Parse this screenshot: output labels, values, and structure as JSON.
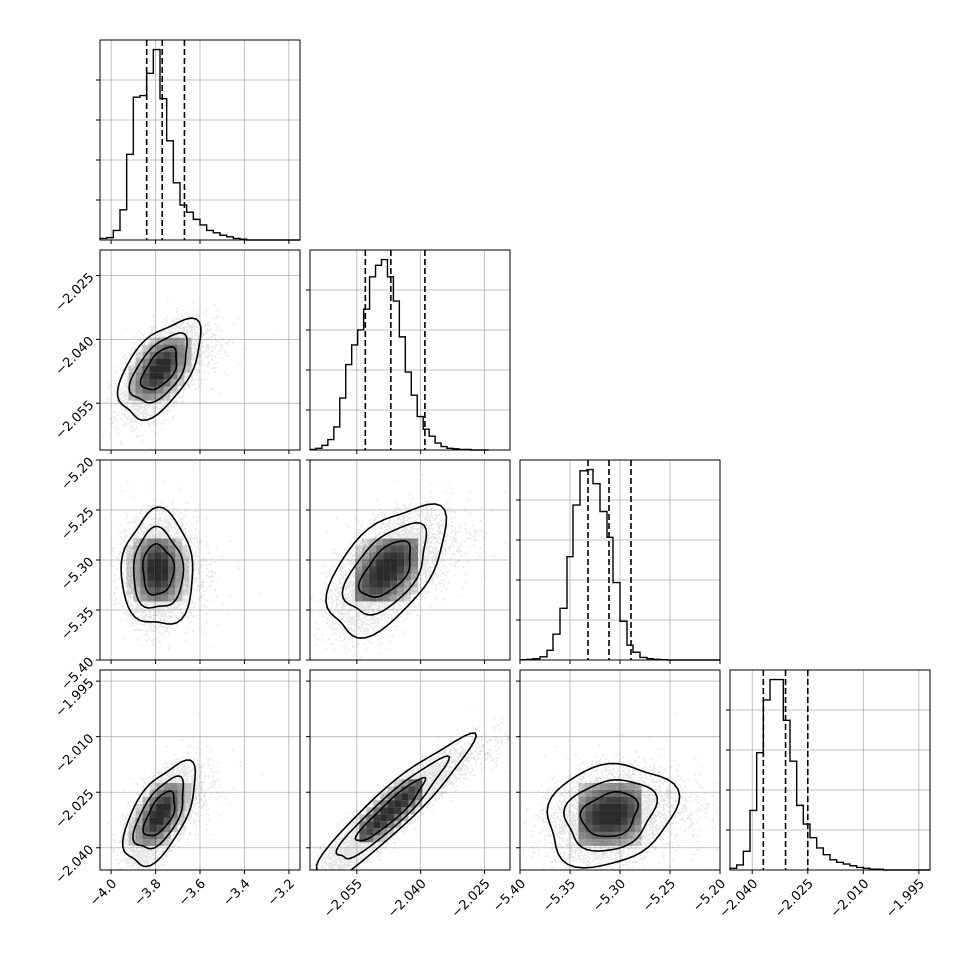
{
  "chart_data": {
    "type": "corner",
    "n_params": 4,
    "params": [
      {
        "index": 0,
        "range": [
          -4.05,
          -3.15
        ],
        "ticks": [
          -4.0,
          -3.8,
          -3.6,
          -3.4,
          -3.2
        ],
        "tick_labels": [
          "−4.0",
          "−3.8",
          "−3.6",
          "−3.4",
          "−3.2"
        ],
        "quantiles": [
          -3.84,
          -3.77,
          -3.67
        ]
      },
      {
        "index": 1,
        "range": [
          -2.066,
          -2.019
        ],
        "ticks": [
          -2.055,
          -2.04,
          -2.025
        ],
        "tick_labels": [
          "−2.055",
          "−2.040",
          "−2.025"
        ],
        "quantiles": [
          -2.053,
          -2.047,
          -2.039
        ]
      },
      {
        "index": 2,
        "range": [
          -5.4,
          -5.2
        ],
        "ticks": [
          -5.4,
          -5.35,
          -5.3,
          -5.25,
          -5.2
        ],
        "tick_labels": [
          "−5.40",
          "−5.35",
          "−5.30",
          "−5.25",
          "−5.20"
        ],
        "quantiles": [
          -5.332,
          -5.311,
          -5.289
        ]
      },
      {
        "index": 3,
        "range": [
          -2.046,
          -1.992
        ],
        "ticks": [
          -2.04,
          -2.025,
          -2.01,
          -1.995
        ],
        "tick_labels": [
          "−2.040",
          "−2.025",
          "−2.010",
          "−1.995"
        ],
        "quantiles": [
          -2.037,
          -2.031,
          -2.025
        ]
      }
    ],
    "histograms": [
      {
        "param": 0,
        "bins": [
          -4.05,
          -4.02,
          -3.99,
          -3.96,
          -3.93,
          -3.9,
          -3.87,
          -3.84,
          -3.81,
          -3.78,
          -3.75,
          -3.72,
          -3.69,
          -3.66,
          -3.63,
          -3.6,
          -3.57,
          -3.54,
          -3.51,
          -3.48,
          -3.45,
          -3.42,
          -3.39,
          -3.36,
          -3.33,
          -3.3,
          -3.27,
          -3.24,
          -3.21,
          -3.18,
          -3.15
        ],
        "counts": [
          2,
          3,
          12,
          38,
          108,
          180,
          182,
          210,
          240,
          178,
          125,
          72,
          44,
          35,
          26,
          19,
          12,
          9,
          6,
          4,
          2,
          1,
          0,
          0,
          0,
          0,
          0,
          0,
          0,
          0
        ]
      },
      {
        "param": 1,
        "bins": [
          -2.066,
          -2.0646,
          -2.0632,
          -2.0618,
          -2.0604,
          -2.059,
          -2.0576,
          -2.0562,
          -2.0548,
          -2.0534,
          -2.052,
          -2.0506,
          -2.0492,
          -2.0478,
          -2.0464,
          -2.045,
          -2.0436,
          -2.0422,
          -2.0408,
          -2.0394,
          -2.038,
          -2.0366,
          -2.0352,
          -2.0338,
          -2.0324,
          -2.031,
          -2.0296,
          -2.0282,
          -2.0268,
          -2.0254,
          -2.024
        ],
        "counts": [
          1,
          3,
          8,
          18,
          40,
          90,
          148,
          182,
          208,
          244,
          300,
          320,
          330,
          300,
          258,
          196,
          135,
          95,
          58,
          36,
          24,
          12,
          6,
          3,
          2,
          1,
          1,
          0,
          0,
          0
        ]
      },
      {
        "param": 2,
        "bins": [
          -5.4,
          -5.393,
          -5.387,
          -5.38,
          -5.373,
          -5.367,
          -5.36,
          -5.353,
          -5.347,
          -5.34,
          -5.333,
          -5.327,
          -5.32,
          -5.313,
          -5.307,
          -5.3,
          -5.293,
          -5.287,
          -5.28,
          -5.273,
          -5.267,
          -5.26,
          -5.253,
          -5.247,
          -5.24,
          -5.233,
          -5.227,
          -5.22,
          -5.213,
          -5.207,
          -5.2
        ],
        "counts": [
          1,
          2,
          4,
          10,
          30,
          80,
          160,
          320,
          480,
          586,
          590,
          546,
          460,
          380,
          240,
          120,
          46,
          24,
          8,
          4,
          2,
          1,
          0,
          0,
          0,
          0,
          0,
          0,
          0,
          0
        ]
      },
      {
        "param": 3,
        "bins": [
          -2.046,
          -2.0442,
          -2.0424,
          -2.0406,
          -2.0388,
          -2.037,
          -2.0352,
          -2.0334,
          -2.0316,
          -2.0298,
          -2.028,
          -2.0262,
          -2.0244,
          -2.0226,
          -2.0208,
          -2.019,
          -2.0172,
          -2.0154,
          -2.0136,
          -2.0118,
          -2.01,
          -2.0082,
          -2.0064,
          -2.0046,
          -2.0028,
          -2.001,
          -1.9992,
          -1.9974,
          -1.9956,
          -1.9938,
          -1.992
        ],
        "counts": [
          2,
          6,
          22,
          70,
          138,
          200,
          224,
          224,
          176,
          128,
          76,
          54,
          38,
          26,
          18,
          12,
          9,
          7,
          5,
          3,
          2,
          1,
          1,
          0,
          0,
          0,
          0,
          0,
          0,
          0
        ]
      }
    ],
    "joint": [
      {
        "x_param": 0,
        "y_param": 1,
        "mean": [
          -3.78,
          -2.047
        ],
        "std": [
          0.08,
          0.005
        ],
        "corr": 0.55,
        "n_points": 4500,
        "contour_levels": 3
      },
      {
        "x_param": 0,
        "y_param": 2,
        "mean": [
          -3.79,
          -5.31
        ],
        "std": [
          0.07,
          0.025
        ],
        "corr": 0.0,
        "n_points": 4500,
        "contour_levels": 3
      },
      {
        "x_param": 1,
        "y_param": 2,
        "mean": [
          -2.048,
          -5.31
        ],
        "std": [
          0.006,
          0.028
        ],
        "corr": 0.55,
        "n_points": 4500,
        "contour_levels": 3
      },
      {
        "x_param": 0,
        "y_param": 3,
        "mean": [
          -3.78,
          -2.031
        ],
        "std": [
          0.07,
          0.006
        ],
        "corr": 0.6,
        "n_points": 4500,
        "contour_levels": 3
      },
      {
        "x_param": 1,
        "y_param": 3,
        "mean": [
          -2.047,
          -2.03
        ],
        "std": [
          0.008,
          0.0085
        ],
        "corr": 0.93,
        "n_points": 4500,
        "contour_levels": 3
      },
      {
        "x_param": 2,
        "y_param": 3,
        "mean": [
          -5.31,
          -2.031
        ],
        "std": [
          0.028,
          0.006
        ],
        "corr": 0.2,
        "n_points": 4500,
        "contour_levels": 3
      }
    ],
    "grid": true,
    "line_color": "#000000",
    "point_color": "#6e6e6e",
    "density_color": "#000000"
  }
}
